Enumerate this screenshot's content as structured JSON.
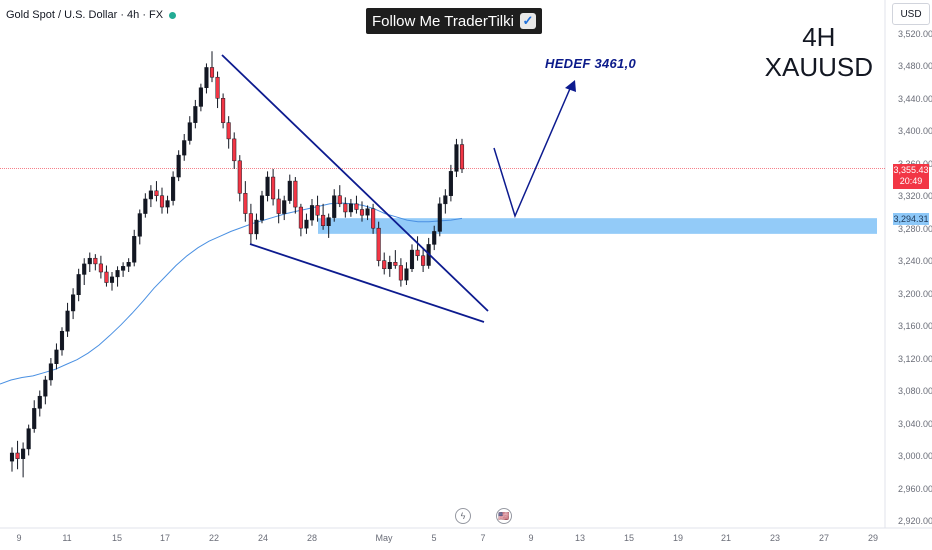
{
  "header": {
    "symbol": "Gold Spot / U.S. Dollar · 4h · FX"
  },
  "banner": {
    "text": "Follow Me TraderTilki",
    "check": "✓"
  },
  "timeframe_label": "4H",
  "symbol_label": "XAUUSD",
  "target_text": "HEDEF 3461,0",
  "currency_button": "USD",
  "price_axis": {
    "labels": [
      "3,520.00",
      "3,480.00",
      "3,440.00",
      "3,400.00",
      "3,360.00",
      "3,320.00",
      "3,280.00",
      "3,240.00",
      "3,200.00",
      "3,160.00",
      "3,120.00",
      "3,080.00",
      "3,040.00",
      "3,000.00",
      "2,960.00",
      "2,920.00"
    ],
    "current_price": "3,355.43",
    "countdown": "20:49",
    "zone_price": "3,294.31"
  },
  "time_axis": {
    "labels": [
      "9",
      "11",
      "15",
      "17",
      "22",
      "24",
      "28",
      "May",
      "5",
      "7",
      "9",
      "13",
      "15",
      "19",
      "21",
      "23",
      "27",
      "29"
    ]
  },
  "events": {
    "flash": "ϟ",
    "flag": "🇺🇸"
  },
  "colors": {
    "up": "#22ab94",
    "down": "#f23645",
    "candle_body": "#131722",
    "ma": "#4a90e2",
    "trend": "#0d1b8f",
    "zone": "#8dc8f8"
  },
  "chart_data": {
    "type": "candlestick",
    "timeframe": "4h",
    "ylim": [
      2920,
      3540
    ],
    "candles": [
      [
        2995,
        3012,
        2982,
        3005
      ],
      [
        3005,
        3020,
        2985,
        2998
      ],
      [
        2998,
        3018,
        2975,
        3010
      ],
      [
        3010,
        3040,
        3002,
        3035
      ],
      [
        3035,
        3070,
        3030,
        3060
      ],
      [
        3060,
        3082,
        3050,
        3075
      ],
      [
        3075,
        3100,
        3065,
        3095
      ],
      [
        3095,
        3122,
        3088,
        3115
      ],
      [
        3115,
        3140,
        3108,
        3132
      ],
      [
        3132,
        3160,
        3125,
        3155
      ],
      [
        3155,
        3190,
        3148,
        3180
      ],
      [
        3180,
        3208,
        3170,
        3200
      ],
      [
        3200,
        3232,
        3192,
        3225
      ],
      [
        3225,
        3245,
        3212,
        3238
      ],
      [
        3238,
        3252,
        3228,
        3245
      ],
      [
        3245,
        3250,
        3230,
        3238
      ],
      [
        3238,
        3248,
        3220,
        3228
      ],
      [
        3228,
        3236,
        3210,
        3215
      ],
      [
        3215,
        3228,
        3205,
        3222
      ],
      [
        3222,
        3235,
        3210,
        3230
      ],
      [
        3230,
        3240,
        3222,
        3235
      ],
      [
        3235,
        3245,
        3228,
        3240
      ],
      [
        3240,
        3280,
        3235,
        3272
      ],
      [
        3272,
        3305,
        3262,
        3300
      ],
      [
        3300,
        3325,
        3295,
        3318
      ],
      [
        3318,
        3335,
        3308,
        3328
      ],
      [
        3328,
        3340,
        3315,
        3322
      ],
      [
        3322,
        3332,
        3300,
        3308
      ],
      [
        3308,
        3322,
        3300,
        3316
      ],
      [
        3316,
        3352,
        3310,
        3345
      ],
      [
        3345,
        3378,
        3340,
        3372
      ],
      [
        3372,
        3398,
        3365,
        3390
      ],
      [
        3390,
        3420,
        3385,
        3412
      ],
      [
        3412,
        3440,
        3405,
        3432
      ],
      [
        3432,
        3460,
        3426,
        3455
      ],
      [
        3455,
        3485,
        3448,
        3480
      ],
      [
        3480,
        3500,
        3462,
        3468
      ],
      [
        3468,
        3475,
        3430,
        3442
      ],
      [
        3442,
        3448,
        3405,
        3412
      ],
      [
        3412,
        3420,
        3380,
        3392
      ],
      [
        3392,
        3400,
        3355,
        3365
      ],
      [
        3365,
        3372,
        3315,
        3325
      ],
      [
        3325,
        3340,
        3290,
        3300
      ],
      [
        3300,
        3312,
        3262,
        3275
      ],
      [
        3275,
        3300,
        3268,
        3292
      ],
      [
        3292,
        3328,
        3288,
        3322
      ],
      [
        3322,
        3352,
        3315,
        3345
      ],
      [
        3345,
        3355,
        3310,
        3318
      ],
      [
        3318,
        3330,
        3288,
        3300
      ],
      [
        3300,
        3322,
        3292,
        3316
      ],
      [
        3316,
        3348,
        3312,
        3340
      ],
      [
        3340,
        3345,
        3300,
        3308
      ],
      [
        3308,
        3312,
        3272,
        3282
      ],
      [
        3282,
        3300,
        3275,
        3292
      ],
      [
        3292,
        3318,
        3285,
        3310
      ],
      [
        3310,
        3322,
        3290,
        3298
      ],
      [
        3298,
        3312,
        3280,
        3285
      ],
      [
        3285,
        3300,
        3270,
        3295
      ],
      [
        3295,
        3330,
        3290,
        3322
      ],
      [
        3322,
        3335,
        3308,
        3312
      ],
      [
        3312,
        3320,
        3295,
        3302
      ],
      [
        3302,
        3318,
        3296,
        3312
      ],
      [
        3312,
        3322,
        3300,
        3305
      ],
      [
        3305,
        3315,
        3290,
        3298
      ],
      [
        3298,
        3310,
        3292,
        3306
      ],
      [
        3306,
        3312,
        3275,
        3282
      ],
      [
        3282,
        3290,
        3235,
        3242
      ],
      [
        3242,
        3252,
        3225,
        3232
      ],
      [
        3232,
        3248,
        3222,
        3240
      ],
      [
        3240,
        3255,
        3232,
        3236
      ],
      [
        3236,
        3245,
        3210,
        3218
      ],
      [
        3218,
        3240,
        3212,
        3232
      ],
      [
        3232,
        3262,
        3228,
        3255
      ],
      [
        3255,
        3272,
        3242,
        3248
      ],
      [
        3248,
        3258,
        3228,
        3236
      ],
      [
        3236,
        3270,
        3232,
        3262
      ],
      [
        3262,
        3285,
        3255,
        3278
      ],
      [
        3278,
        3320,
        3272,
        3312
      ],
      [
        3312,
        3330,
        3300,
        3322
      ],
      [
        3322,
        3360,
        3315,
        3352
      ],
      [
        3352,
        3392,
        3345,
        3385
      ],
      [
        3385,
        3392,
        3350,
        3355
      ]
    ],
    "moving_average": [
      3090,
      3095,
      3098,
      3100,
      3104,
      3108,
      3114,
      3120,
      3128,
      3138,
      3150,
      3163,
      3177,
      3192,
      3208,
      3222,
      3236,
      3248,
      3258,
      3266,
      3272,
      3278,
      3283,
      3288,
      3292,
      3296,
      3300,
      3303,
      3306,
      3309,
      3312,
      3313,
      3312,
      3310,
      3306,
      3300,
      3296,
      3292,
      3290,
      3290,
      3291,
      3292,
      3294
    ],
    "annotations": {
      "target": 3461.0,
      "support_zone": [
        3275,
        3294.31
      ],
      "current_price": 3355.43
    }
  }
}
